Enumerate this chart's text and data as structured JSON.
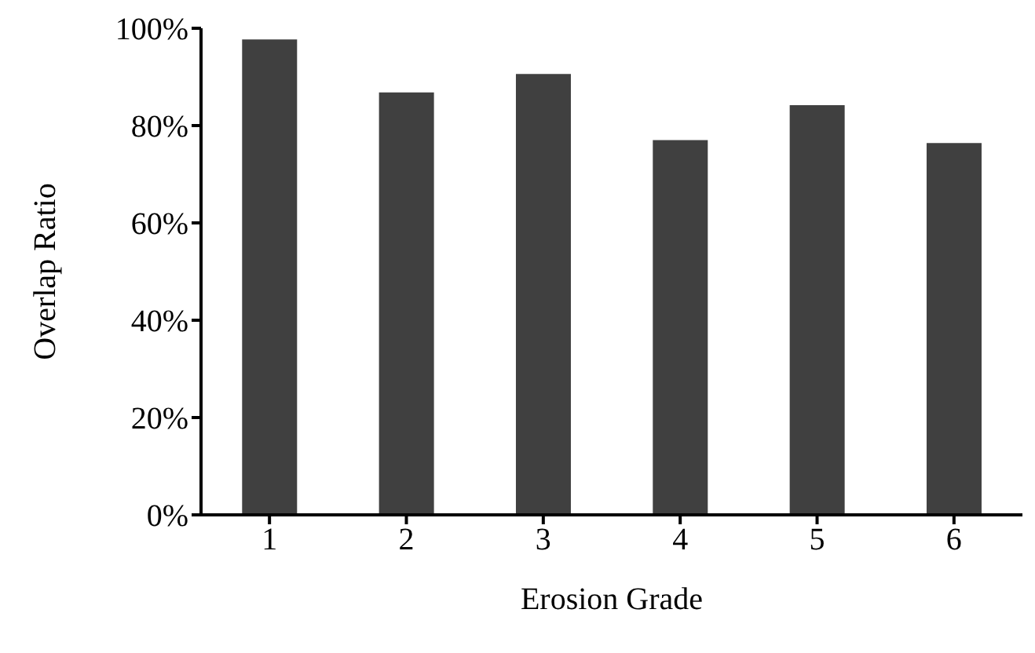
{
  "chart_data": {
    "type": "bar",
    "xlabel": "Erosion Grade",
    "ylabel": "Overlap Ratio",
    "categories": [
      "1",
      "2",
      "3",
      "4",
      "5",
      "6"
    ],
    "values": [
      97.7,
      86.8,
      90.6,
      77.0,
      84.2,
      76.4
    ],
    "color": "#404040",
    "ylim": [
      0,
      100
    ],
    "yticks": [
      {
        "value": 0,
        "label": "0%"
      },
      {
        "value": 20,
        "label": "20%"
      },
      {
        "value": 40,
        "label": "40%"
      },
      {
        "value": 60,
        "label": "60%"
      },
      {
        "value": 80,
        "label": "80%"
      },
      {
        "value": 100,
        "label": "100%"
      }
    ],
    "grid": false,
    "legend": false
  }
}
